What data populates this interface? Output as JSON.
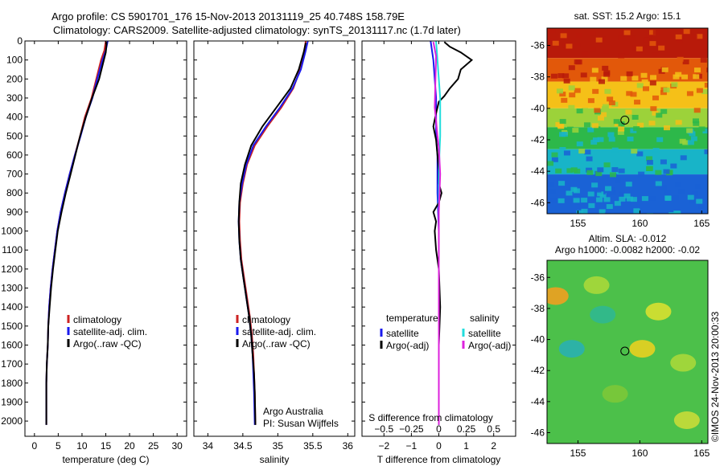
{
  "figure": {
    "title_line1": "Argo profile: CS 5901701_176 15-Nov-2013 20131119_25 40.748S 158.79E",
    "title_line2": "Climatology: CARS2009. Satellite-adjusted climatology: synTS_20131117.nc (1.7d later)",
    "side_label": "©IMOS 24-Nov-2013 20:00:33",
    "credit_line1": "Argo Australia",
    "credit_line2": "PI: Susan Wijffels"
  },
  "colors": {
    "climatology": "#cc2222",
    "satellite": "#1a1aee",
    "argo": "#000000",
    "salinity_satellite": "#22dddd",
    "salinity_argo": "#dd22dd"
  },
  "chart_data": [
    {
      "type": "line",
      "xlabel": "temperature (deg C)",
      "ylabel": "",
      "xlim": [
        -2,
        32
      ],
      "ylim": [
        2080,
        0
      ],
      "xticks": [
        0,
        5,
        10,
        15,
        20,
        25,
        30
      ],
      "yticks": [
        0,
        100,
        200,
        300,
        400,
        500,
        600,
        700,
        800,
        900,
        1000,
        1100,
        1200,
        1300,
        1400,
        1500,
        1600,
        1700,
        1800,
        1900,
        2000
      ],
      "legend": [
        "climatology",
        "satellite-adj. clim.",
        "Argo(..raw -QC)"
      ],
      "legend_position": "center-right",
      "series": [
        {
          "name": "climatology",
          "color": "#cc2222",
          "x": [
            15.0,
            14.7,
            14.0,
            13.0,
            12.0,
            10.6,
            9.6,
            8.5,
            7.4,
            6.4,
            5.5,
            4.8,
            4.3,
            3.8,
            3.4,
            3.1,
            2.9,
            2.8,
            2.6,
            2.5,
            2.5
          ],
          "y": [
            0,
            50,
            100,
            200,
            300,
            400,
            500,
            600,
            700,
            800,
            900,
            1000,
            1100,
            1200,
            1300,
            1400,
            1500,
            1600,
            1700,
            1800,
            2020
          ]
        },
        {
          "name": "satellite-adj. clim.",
          "color": "#1a1aee",
          "x": [
            15.4,
            15.0,
            14.3,
            13.2,
            12.2,
            10.8,
            9.7,
            8.5,
            7.4,
            6.4,
            5.5,
            4.8,
            4.3,
            3.8,
            3.4,
            3.1,
            2.9,
            2.8,
            2.6,
            2.5,
            2.5
          ],
          "y": [
            0,
            50,
            100,
            200,
            300,
            400,
            500,
            600,
            700,
            800,
            900,
            1000,
            1100,
            1200,
            1300,
            1400,
            1500,
            1600,
            1700,
            1800,
            2020
          ]
        },
        {
          "name": "Argo(..raw -QC)",
          "color": "#000000",
          "x": [
            15.2,
            15.0,
            14.6,
            13.6,
            12.1,
            10.8,
            9.6,
            8.6,
            7.6,
            6.6,
            5.7,
            4.9,
            4.4,
            3.9,
            3.5,
            3.2,
            2.9,
            2.8,
            2.6,
            2.5,
            2.5
          ],
          "y": [
            5,
            60,
            100,
            200,
            300,
            400,
            500,
            600,
            700,
            800,
            900,
            1000,
            1100,
            1200,
            1300,
            1400,
            1500,
            1600,
            1700,
            1800,
            2020
          ]
        }
      ]
    },
    {
      "type": "line",
      "xlabel": "salinity",
      "ylabel": "",
      "xlim": [
        33.8,
        36.1
      ],
      "ylim": [
        2080,
        0
      ],
      "xticks": [
        34,
        34.5,
        35,
        35.5,
        36
      ],
      "legend": [
        "climatology",
        "satellite-adj. clim.",
        "Argo(..raw -QC)"
      ],
      "legend_position": "center-right",
      "series": [
        {
          "name": "climatology",
          "color": "#cc2222",
          "x": [
            35.4,
            35.38,
            35.32,
            35.22,
            35.05,
            34.85,
            34.67,
            34.56,
            34.5,
            34.46,
            34.45,
            34.46,
            34.48,
            34.52,
            34.56,
            34.6,
            34.63,
            34.65,
            34.66,
            34.67,
            34.68
          ],
          "y": [
            0,
            50,
            150,
            250,
            350,
            450,
            550,
            650,
            750,
            850,
            950,
            1050,
            1150,
            1250,
            1350,
            1450,
            1550,
            1650,
            1750,
            1850,
            2020
          ]
        },
        {
          "name": "satellite-adj. clim.",
          "color": "#1a1aee",
          "x": [
            35.43,
            35.4,
            35.33,
            35.21,
            35.03,
            34.83,
            34.65,
            34.55,
            34.49,
            34.45,
            34.44,
            34.45,
            34.47,
            34.51,
            34.55,
            34.59,
            34.62,
            34.64,
            34.65,
            34.66,
            34.67
          ],
          "y": [
            0,
            50,
            150,
            250,
            350,
            450,
            550,
            650,
            750,
            850,
            950,
            1050,
            1150,
            1250,
            1350,
            1450,
            1550,
            1650,
            1750,
            1850,
            2020
          ]
        },
        {
          "name": "Argo(..raw -QC)",
          "color": "#000000",
          "x": [
            35.4,
            35.37,
            35.3,
            35.18,
            34.98,
            34.78,
            34.62,
            34.53,
            34.47,
            34.45,
            34.44,
            34.45,
            34.47,
            34.51,
            34.55,
            34.59,
            34.62,
            34.64,
            34.66,
            34.67,
            34.68
          ],
          "y": [
            10,
            60,
            150,
            250,
            350,
            450,
            550,
            650,
            750,
            850,
            950,
            1050,
            1150,
            1250,
            1350,
            1450,
            1550,
            1650,
            1750,
            1850,
            2020
          ]
        }
      ]
    },
    {
      "type": "line",
      "xlabel": "T difference from climatology",
      "xlabel_top": "S difference from climatology",
      "ylabel": "",
      "xlim": [
        -2.8,
        2.8
      ],
      "ylim": [
        2080,
        0
      ],
      "xticks": [
        -2,
        -1,
        0,
        1,
        2
      ],
      "xticks_labels": [
        "−2",
        "−1",
        "0",
        "1",
        "2"
      ],
      "xticks_top": [
        -2,
        -1,
        0,
        1,
        2
      ],
      "xticks_top_labels": [
        "−0.5",
        "−0.25",
        "0",
        "0.25",
        "0.5"
      ],
      "legend_temperature_title": "temperature",
      "legend_salinity_title": "salinity",
      "legend": [
        "satellite",
        "Argo(-adj)",
        "satellite",
        "Argo(-adj)"
      ],
      "legend_position": "center",
      "series": [
        {
          "name": "satellite",
          "group": "temperature",
          "color": "#1a1aee",
          "x": [
            -0.3,
            -0.2,
            -0.15,
            -0.1,
            -0.1,
            -0.1,
            -0.05,
            -0.05,
            -0.05,
            0,
            0,
            0,
            0,
            0,
            0,
            0
          ],
          "y": [
            0,
            100,
            200,
            300,
            400,
            500,
            600,
            700,
            800,
            1000,
            1200,
            1400,
            1600,
            1800,
            1900,
            2020
          ]
        },
        {
          "name": "Argo(-adj)",
          "group": "temperature",
          "color": "#000000",
          "x": [
            0.2,
            0.4,
            0.8,
            1.2,
            0.8,
            0.7,
            0.4,
            0.2,
            0.0,
            -0.1,
            -0.2,
            -0.1,
            -0.05,
            0.0,
            0.0,
            0.1,
            0.0,
            -0.2,
            -0.1,
            -0.15,
            -0.1,
            0.0,
            0.05,
            0.0,
            0.0,
            0.0
          ],
          "y": [
            5,
            30,
            60,
            100,
            150,
            200,
            250,
            290,
            320,
            380,
            450,
            520,
            600,
            680,
            750,
            800,
            850,
            900,
            950,
            1000,
            1100,
            1200,
            1400,
            1600,
            1800,
            2020
          ]
        },
        {
          "name": "satellite",
          "group": "salinity",
          "color": "#22dddd",
          "x": [
            -0.1,
            -0.05,
            0,
            0.05,
            0.05,
            0.05,
            0.02,
            0.0,
            0.0,
            0.0,
            0.0,
            0.0
          ],
          "y": [
            0,
            100,
            200,
            300,
            400,
            500,
            600,
            800,
            1000,
            1400,
            1800,
            2020
          ]
        },
        {
          "name": "Argo(-adj)",
          "group": "salinity",
          "color": "#dd22dd",
          "x": [
            -0.2,
            -0.1,
            -0.15,
            -0.1,
            -0.05,
            0.0,
            0.05,
            0.0,
            0.0,
            0.0,
            0.0
          ],
          "y": [
            5,
            80,
            350,
            420,
            500,
            560,
            700,
            900,
            1300,
            1700,
            2020
          ]
        }
      ]
    },
    {
      "type": "heatmap",
      "title": "sat. SST: 15.2  Argo: 15.1",
      "xlim": [
        152.5,
        165.5
      ],
      "ylim": [
        -46.7,
        -34.9
      ],
      "xticks": [
        155,
        160,
        165
      ],
      "yticks": [
        -36,
        -38,
        -40,
        -42,
        -44,
        -46
      ],
      "yticks_labels": [
        "-36",
        "-38",
        "-40",
        "-42",
        "-44",
        "-46"
      ],
      "colormap_bands": [
        {
          "lat_from": -34.9,
          "lat_to": -36.8,
          "color": "#b81a0a"
        },
        {
          "lat_from": -36.8,
          "lat_to": -38.3,
          "color": "#e2580a"
        },
        {
          "lat_from": -38.3,
          "lat_to": -40.0,
          "color": "#f5c018"
        },
        {
          "lat_from": -40.0,
          "lat_to": -41.2,
          "color": "#9cd23a"
        },
        {
          "lat_from": -41.2,
          "lat_to": -42.6,
          "color": "#2db84a"
        },
        {
          "lat_from": -42.6,
          "lat_to": -44.2,
          "color": "#18b4c8"
        },
        {
          "lat_from": -44.2,
          "lat_to": -46.7,
          "color": "#1a62d6"
        }
      ],
      "marker": {
        "lon": 158.79,
        "lat": -40.748
      }
    },
    {
      "type": "heatmap",
      "title": "Altim. SLA: -0.012",
      "subtitle": "Argo h1000: -0.0082 h2000: -0.02",
      "xlim": [
        152.5,
        165.5
      ],
      "ylim": [
        -46.7,
        -34.9
      ],
      "xticks": [
        155,
        160,
        165
      ],
      "yticks": [
        -36,
        -38,
        -40,
        -42,
        -44,
        -46
      ],
      "yticks_labels": [
        "-36",
        "-38",
        "-40",
        "-42",
        "-44",
        "-46"
      ],
      "background_color": "#4cc04a",
      "blobs": [
        {
          "lon": 153.2,
          "lat": -37.2,
          "color": "#f0a020"
        },
        {
          "lon": 156.5,
          "lat": -36.5,
          "color": "#a8d83a"
        },
        {
          "lon": 161.5,
          "lat": -38.2,
          "color": "#d8e030"
        },
        {
          "lon": 160.2,
          "lat": -40.6,
          "color": "#e8d020"
        },
        {
          "lon": 154.5,
          "lat": -40.6,
          "color": "#2ab0b0"
        },
        {
          "lon": 157.0,
          "lat": -38.4,
          "color": "#30b890"
        },
        {
          "lon": 163.5,
          "lat": -41.5,
          "color": "#a8d83a"
        },
        {
          "lon": 158.0,
          "lat": -43.5,
          "color": "#7cc838"
        },
        {
          "lon": 163.8,
          "lat": -45.2,
          "color": "#c8dc38"
        }
      ],
      "marker": {
        "lon": 158.79,
        "lat": -40.748
      }
    }
  ]
}
